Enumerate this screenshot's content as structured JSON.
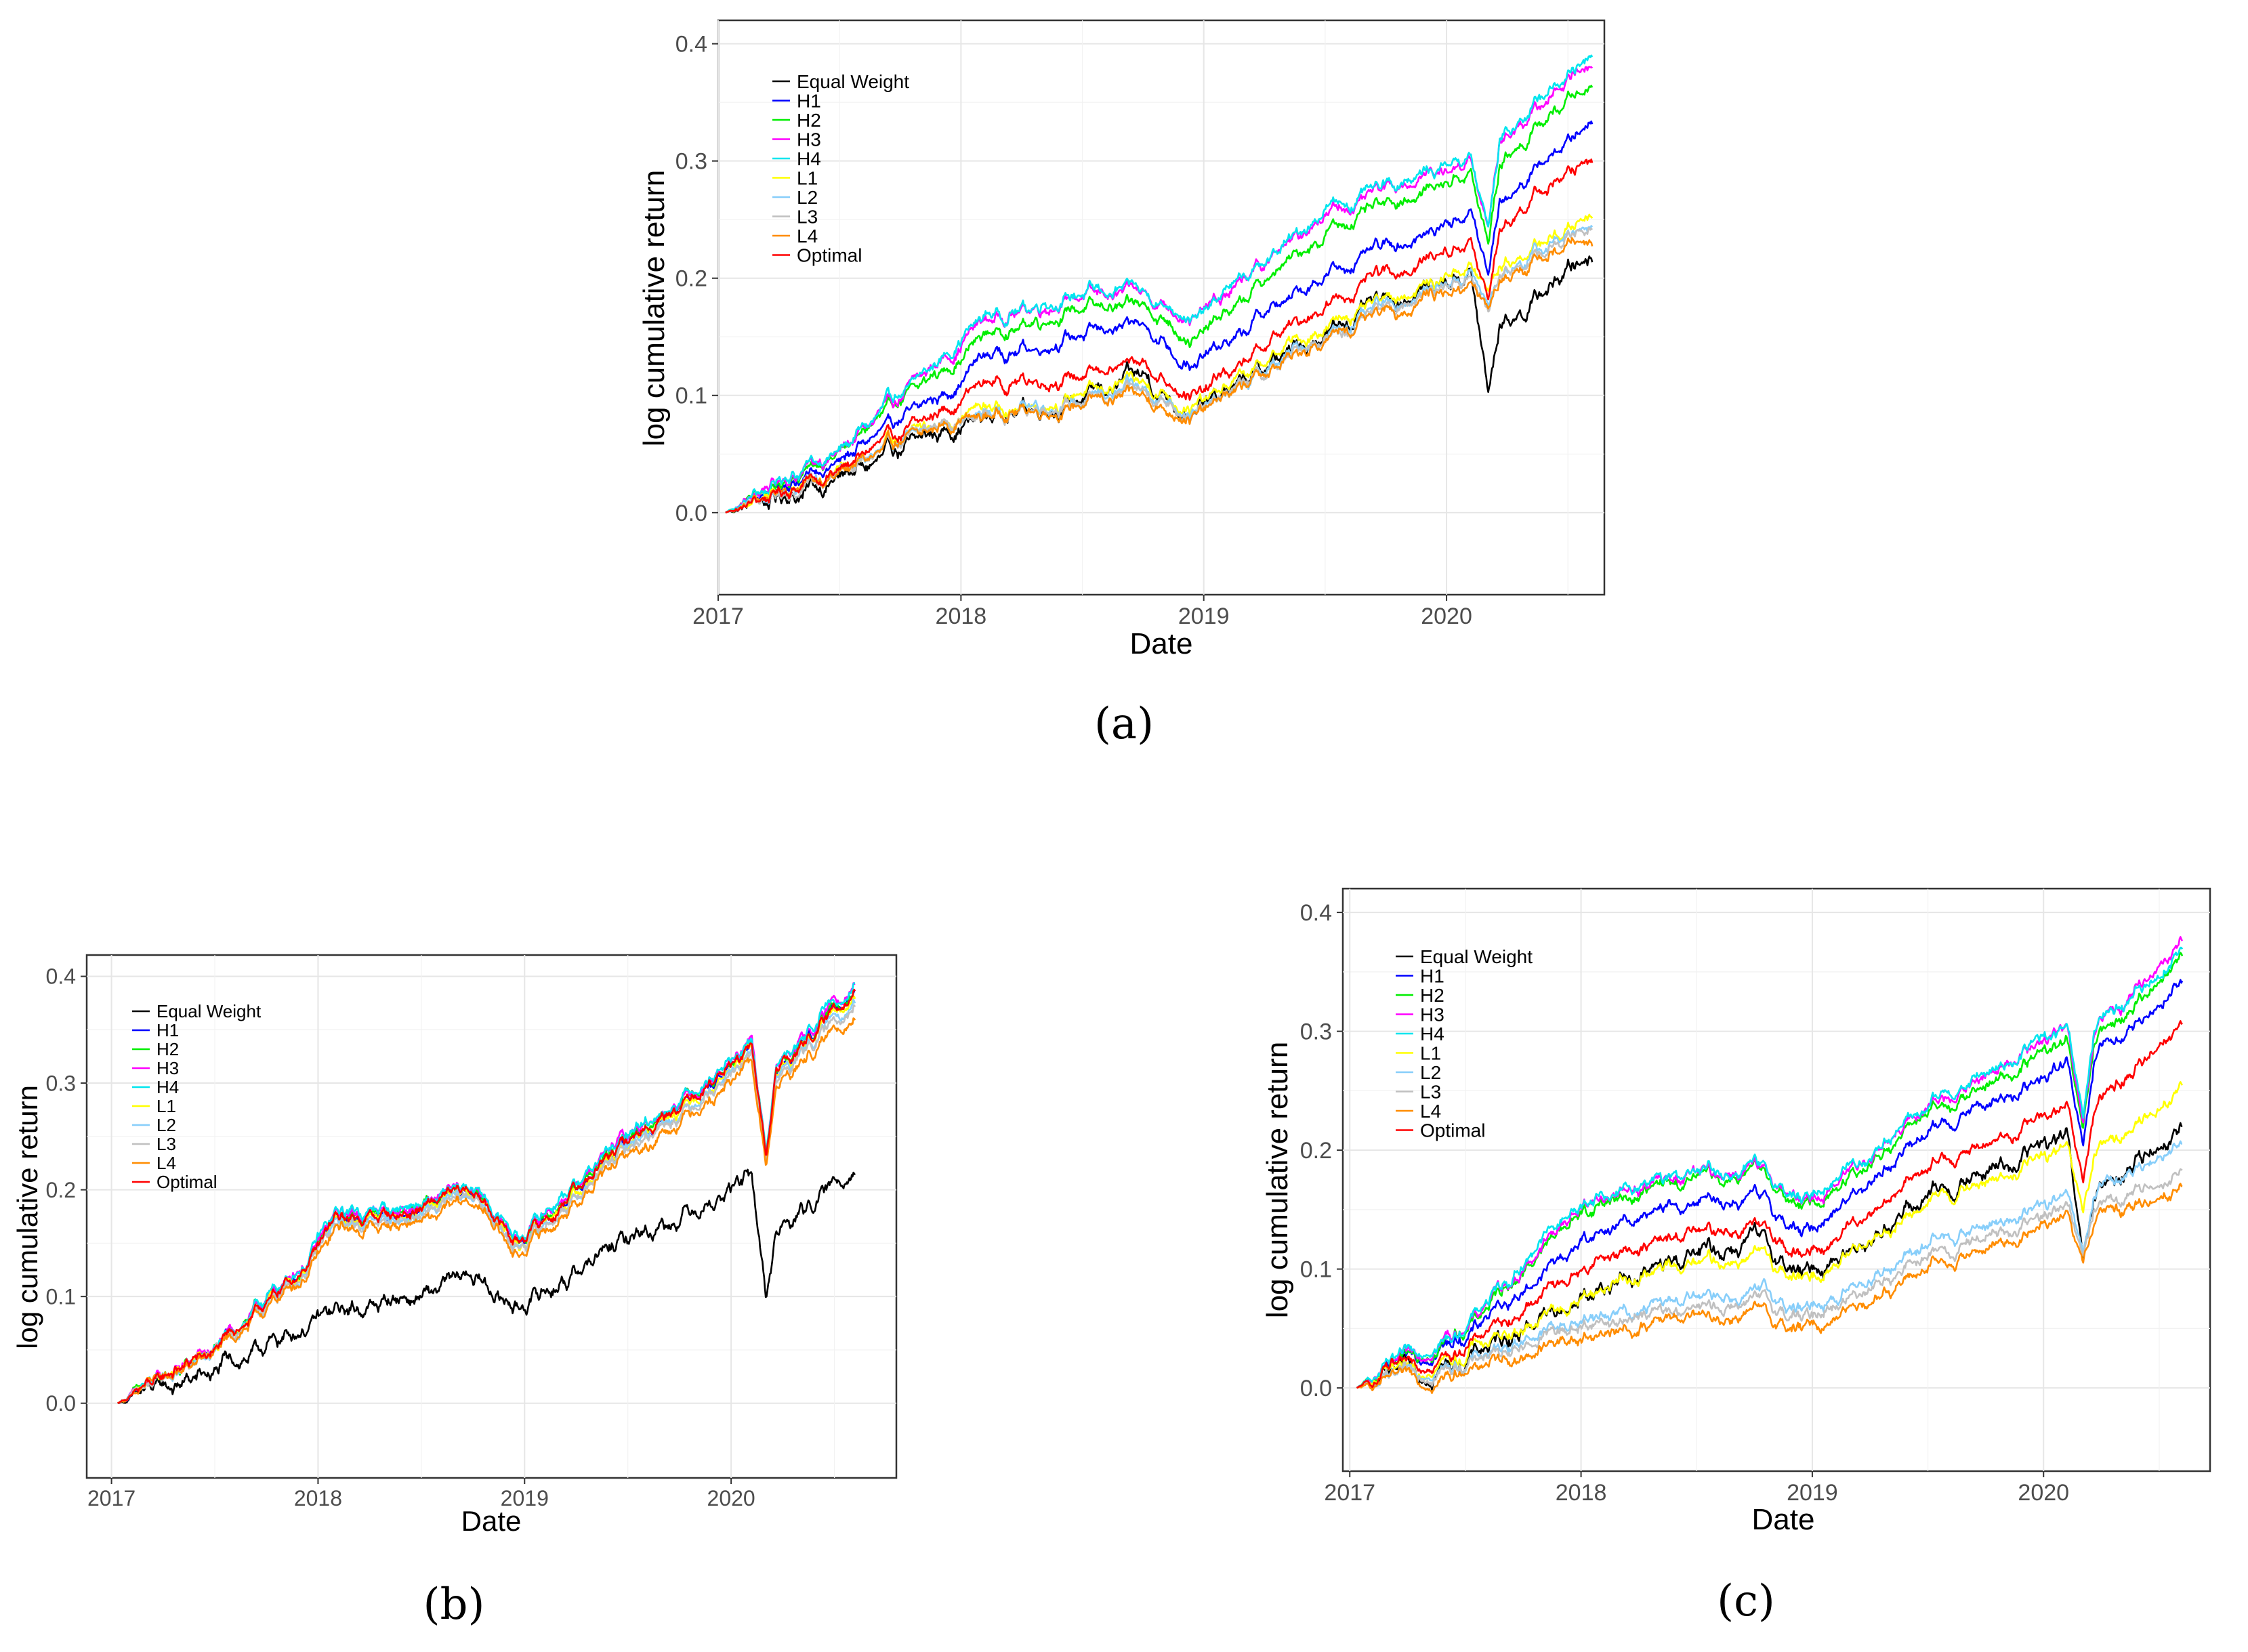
{
  "figure": {
    "captions": [
      "(a)",
      "(b)",
      "(c)"
    ]
  },
  "chart_data": [
    {
      "id": "a",
      "type": "line",
      "caption": "(a)",
      "xlabel": "Date",
      "ylabel": "log cumulative return",
      "x_ticks": [
        "2017",
        "2018",
        "2019",
        "2020"
      ],
      "y_ticks": [
        "0.0",
        "0.1",
        "0.2",
        "0.3",
        "0.4"
      ],
      "xlim": [
        2017.0,
        2020.65
      ],
      "ylim": [
        -0.07,
        0.42
      ],
      "x": [
        2017.03,
        2017.5,
        2017.95,
        2018.08,
        2018.5,
        2018.75,
        2018.97,
        2019.5,
        2020.1,
        2020.17,
        2020.22,
        2020.6
      ],
      "series": [
        {
          "name": "Equal Weight",
          "color": "#000000",
          "values": [
            0.0,
            0.028,
            0.072,
            0.082,
            0.098,
            0.115,
            0.085,
            0.155,
            0.207,
            0.1,
            0.16,
            0.222
          ]
        },
        {
          "name": "H1",
          "color": "#0000ff",
          "values": [
            0.0,
            0.043,
            0.105,
            0.133,
            0.153,
            0.16,
            0.125,
            0.205,
            0.255,
            0.2,
            0.265,
            0.336
          ]
        },
        {
          "name": "H2",
          "color": "#00ee00",
          "values": [
            0.0,
            0.05,
            0.125,
            0.15,
            0.175,
            0.175,
            0.148,
            0.24,
            0.29,
            0.228,
            0.3,
            0.37
          ]
        },
        {
          "name": "H3",
          "color": "#ff00ff",
          "values": [
            0.0,
            0.053,
            0.135,
            0.162,
            0.185,
            0.186,
            0.165,
            0.255,
            0.302,
            0.24,
            0.318,
            0.388
          ]
        },
        {
          "name": "H4",
          "color": "#00e5ee",
          "values": [
            0.0,
            0.054,
            0.137,
            0.165,
            0.188,
            0.188,
            0.167,
            0.257,
            0.305,
            0.242,
            0.32,
            0.393
          ]
        },
        {
          "name": "L1",
          "color": "#ffff00",
          "values": [
            0.0,
            0.036,
            0.08,
            0.088,
            0.1,
            0.112,
            0.09,
            0.16,
            0.21,
            0.185,
            0.21,
            0.255
          ]
        },
        {
          "name": "L2",
          "color": "#87cefa",
          "values": [
            0.0,
            0.035,
            0.078,
            0.085,
            0.095,
            0.105,
            0.085,
            0.152,
            0.205,
            0.175,
            0.205,
            0.248
          ]
        },
        {
          "name": "L3",
          "color": "#c0c0c0",
          "values": [
            0.0,
            0.034,
            0.077,
            0.083,
            0.094,
            0.104,
            0.084,
            0.15,
            0.203,
            0.172,
            0.203,
            0.245
          ]
        },
        {
          "name": "L4",
          "color": "#ff8c00",
          "values": [
            0.0,
            0.034,
            0.076,
            0.083,
            0.092,
            0.1,
            0.082,
            0.148,
            0.198,
            0.17,
            0.2,
            0.235
          ]
        },
        {
          "name": "Optimal",
          "color": "#ff0000",
          "values": [
            0.0,
            0.036,
            0.09,
            0.11,
            0.118,
            0.125,
            0.1,
            0.178,
            0.232,
            0.18,
            0.245,
            0.305
          ]
        }
      ]
    },
    {
      "id": "b",
      "type": "line",
      "caption": "(b)",
      "xlabel": "Date",
      "ylabel": "log cumulative return",
      "x_ticks": [
        "2017",
        "2018",
        "2019",
        "2020"
      ],
      "y_ticks": [
        "0.0",
        "0.1",
        "0.2",
        "0.3",
        "0.4"
      ],
      "xlim": [
        2016.88,
        2020.8
      ],
      "ylim": [
        -0.07,
        0.42
      ],
      "x": [
        2017.03,
        2017.5,
        2017.95,
        2018.08,
        2018.5,
        2018.75,
        2018.97,
        2019.5,
        2020.1,
        2020.17,
        2020.22,
        2020.6
      ],
      "series": [
        {
          "name": "Equal Weight",
          "color": "#000000",
          "values": [
            0.0,
            0.028,
            0.072,
            0.085,
            0.1,
            0.118,
            0.09,
            0.155,
            0.21,
            0.1,
            0.16,
            0.222
          ]
        },
        {
          "name": "H1",
          "color": "#0000ff",
          "values": [
            0.0,
            0.05,
            0.13,
            0.17,
            0.18,
            0.2,
            0.15,
            0.245,
            0.33,
            0.23,
            0.31,
            0.39
          ]
        },
        {
          "name": "H2",
          "color": "#00ee00",
          "values": [
            0.0,
            0.05,
            0.131,
            0.172,
            0.182,
            0.201,
            0.152,
            0.247,
            0.332,
            0.232,
            0.312,
            0.392
          ]
        },
        {
          "name": "H3",
          "color": "#ff00ff",
          "values": [
            0.0,
            0.051,
            0.133,
            0.175,
            0.185,
            0.203,
            0.154,
            0.25,
            0.335,
            0.235,
            0.315,
            0.397
          ]
        },
        {
          "name": "H4",
          "color": "#00e5ee",
          "values": [
            0.0,
            0.052,
            0.134,
            0.176,
            0.186,
            0.204,
            0.156,
            0.251,
            0.336,
            0.236,
            0.316,
            0.395
          ]
        },
        {
          "name": "L1",
          "color": "#ffff00",
          "values": [
            0.0,
            0.049,
            0.128,
            0.168,
            0.178,
            0.197,
            0.148,
            0.242,
            0.327,
            0.228,
            0.307,
            0.385
          ]
        },
        {
          "name": "L2",
          "color": "#87cefa",
          "values": [
            0.0,
            0.048,
            0.127,
            0.166,
            0.176,
            0.195,
            0.146,
            0.24,
            0.324,
            0.226,
            0.305,
            0.38
          ]
        },
        {
          "name": "L3",
          "color": "#c0c0c0",
          "values": [
            0.0,
            0.048,
            0.126,
            0.165,
            0.175,
            0.194,
            0.145,
            0.238,
            0.322,
            0.225,
            0.303,
            0.378
          ]
        },
        {
          "name": "L4",
          "color": "#ff8c00",
          "values": [
            0.0,
            0.046,
            0.122,
            0.16,
            0.17,
            0.189,
            0.14,
            0.232,
            0.315,
            0.22,
            0.297,
            0.365
          ]
        },
        {
          "name": "Optimal",
          "color": "#ff0000",
          "values": [
            0.0,
            0.05,
            0.13,
            0.171,
            0.181,
            0.2,
            0.151,
            0.246,
            0.331,
            0.231,
            0.311,
            0.389
          ]
        }
      ]
    },
    {
      "id": "c",
      "type": "line",
      "caption": "(c)",
      "xlabel": "Date",
      "ylabel": "log cumulative return",
      "x_ticks": [
        "2017",
        "2018",
        "2019",
        "2020"
      ],
      "y_ticks": [
        "0.0",
        "0.1",
        "0.2",
        "0.3",
        "0.4"
      ],
      "xlim": [
        2016.97,
        2020.72
      ],
      "ylim": [
        -0.07,
        0.42
      ],
      "x": [
        2017.03,
        2017.5,
        2017.95,
        2018.08,
        2018.5,
        2018.75,
        2018.97,
        2019.5,
        2020.1,
        2020.17,
        2020.22,
        2020.6
      ],
      "series": [
        {
          "name": "Equal Weight",
          "color": "#000000",
          "values": [
            0.0,
            0.025,
            0.07,
            0.085,
            0.11,
            0.125,
            0.095,
            0.16,
            0.21,
            0.1,
            0.16,
            0.222
          ]
        },
        {
          "name": "H1",
          "color": "#0000ff",
          "values": [
            0.0,
            0.045,
            0.115,
            0.135,
            0.155,
            0.16,
            0.13,
            0.215,
            0.27,
            0.2,
            0.275,
            0.345
          ]
        },
        {
          "name": "H2",
          "color": "#00ee00",
          "values": [
            0.0,
            0.05,
            0.14,
            0.155,
            0.175,
            0.18,
            0.15,
            0.23,
            0.29,
            0.215,
            0.29,
            0.365
          ]
        },
        {
          "name": "H3",
          "color": "#ff00ff",
          "values": [
            0.0,
            0.051,
            0.145,
            0.16,
            0.18,
            0.183,
            0.155,
            0.235,
            0.3,
            0.22,
            0.298,
            0.378
          ]
        },
        {
          "name": "H4",
          "color": "#00e5ee",
          "values": [
            0.0,
            0.052,
            0.148,
            0.162,
            0.182,
            0.185,
            0.157,
            0.238,
            0.302,
            0.222,
            0.3,
            0.37
          ]
        },
        {
          "name": "L1",
          "color": "#ffff00",
          "values": [
            0.0,
            0.03,
            0.07,
            0.085,
            0.105,
            0.11,
            0.09,
            0.155,
            0.2,
            0.14,
            0.195,
            0.255
          ]
        },
        {
          "name": "L2",
          "color": "#87cefa",
          "values": [
            0.0,
            0.022,
            0.055,
            0.06,
            0.075,
            0.08,
            0.065,
            0.12,
            0.16,
            0.11,
            0.16,
            0.21
          ]
        },
        {
          "name": "L3",
          "color": "#c0c0c0",
          "values": [
            0.0,
            0.02,
            0.05,
            0.055,
            0.068,
            0.072,
            0.058,
            0.11,
            0.15,
            0.105,
            0.15,
            0.185
          ]
        },
        {
          "name": "L4",
          "color": "#ff8c00",
          "values": [
            0.0,
            0.015,
            0.04,
            0.045,
            0.058,
            0.062,
            0.05,
            0.1,
            0.14,
            0.1,
            0.14,
            0.17
          ]
        },
        {
          "name": "Optimal",
          "color": "#ff0000",
          "values": [
            0.0,
            0.035,
            0.095,
            0.11,
            0.13,
            0.135,
            0.11,
            0.185,
            0.235,
            0.165,
            0.235,
            0.31
          ]
        }
      ]
    }
  ]
}
